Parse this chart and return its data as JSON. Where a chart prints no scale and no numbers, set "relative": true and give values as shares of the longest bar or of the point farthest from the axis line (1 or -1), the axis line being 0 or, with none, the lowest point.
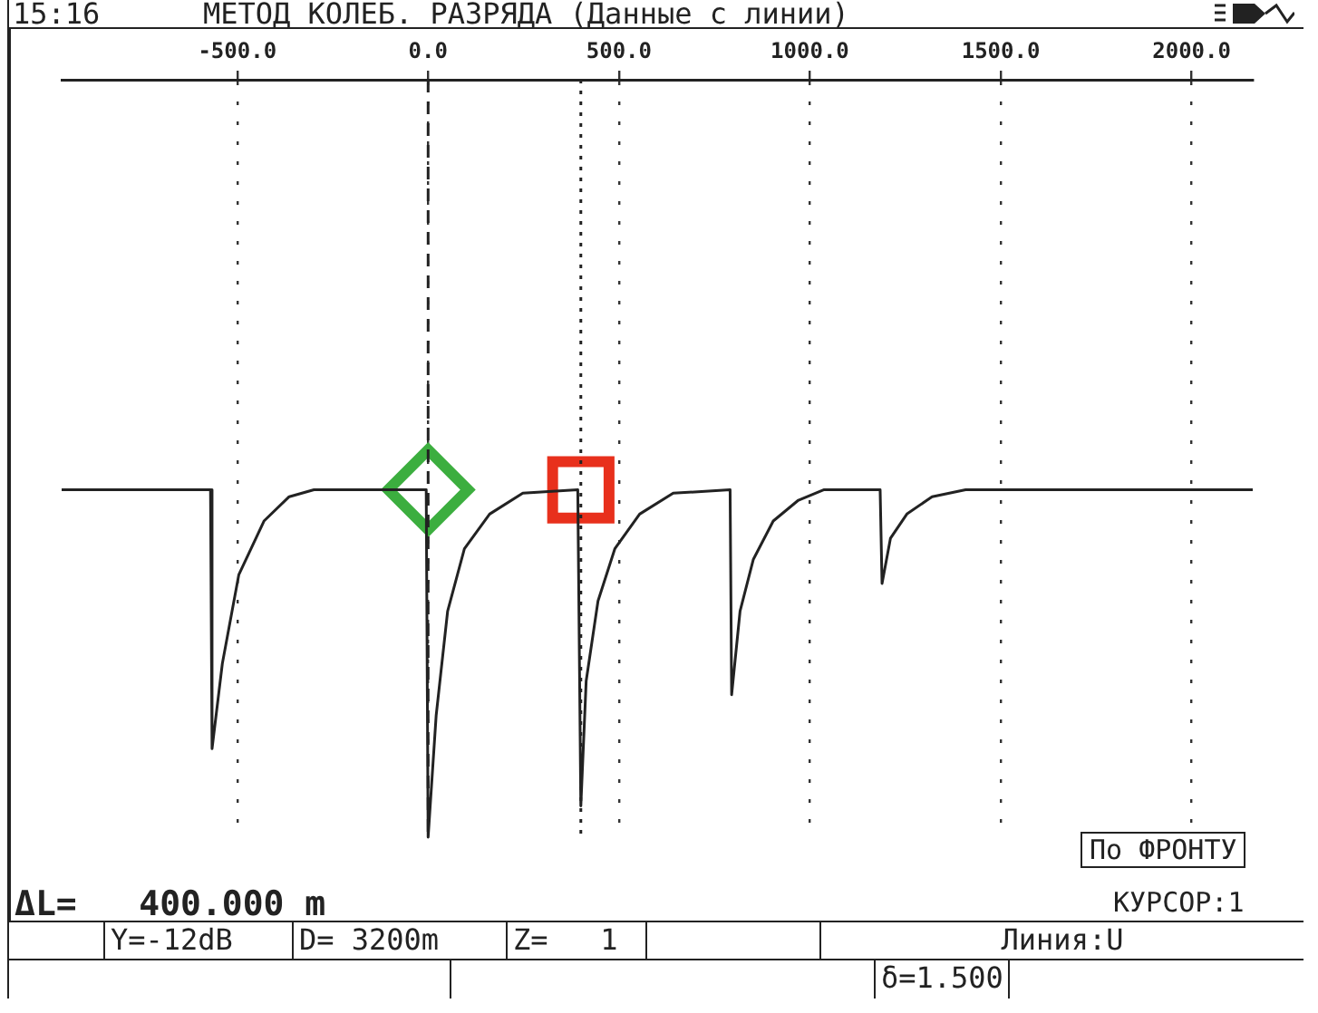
{
  "chart_data": {
    "type": "line",
    "title": "МЕТОД КОЛЕБ. РАЗРЯДА (Данные с линии)",
    "annotations": [
      "15:16",
      "ΔL=   400.000 m",
      "По ФРОНТУ",
      "КУРСОР:1",
      "Y=-12dB",
      "D= 3200m",
      "Z=   1",
      "Линия:U",
      "δ=1.500"
    ],
    "relative": true,
    "xlim": [
      -960,
      2160
    ],
    "xticks": [
      {
        "value": -500,
        "label": "-500.0"
      },
      {
        "value": 0,
        "label": "0.0"
      },
      {
        "value": 500,
        "label": "500.0"
      },
      {
        "value": 1000,
        "label": "1000.0"
      },
      {
        "value": 1500,
        "label": "1500.0"
      },
      {
        "value": 2000,
        "label": "2000.0"
      }
    ],
    "grid": "x",
    "legend": false,
    "marker": "none",
    "line_style": "solid",
    "series": [
      {
        "color": "#222222",
        "x": [
          -960,
          -570,
          -566,
          -539,
          -496,
          -430,
          -364,
          -299,
          -5,
          0,
          21,
          51,
          95,
          161,
          248,
          392,
          400,
          414,
          445,
          489,
          554,
          642,
          791,
          795,
          817,
          852,
          904,
          970,
          1036,
          1184,
          1189,
          1211,
          1254,
          1320,
          1408,
          2160
        ],
        "values": [
          1,
          1,
          0.255,
          0.5,
          0.755,
          0.91,
          0.98,
          1,
          1,
          0,
          0.35,
          0.65,
          0.83,
          0.93,
          0.99,
          1,
          0.09,
          0.45,
          0.68,
          0.83,
          0.93,
          0.99,
          1,
          0.41,
          0.65,
          0.8,
          0.91,
          0.97,
          1,
          1,
          0.73,
          0.86,
          0.93,
          0.98,
          1,
          1
        ]
      },
      {
        "type": "scatter",
        "color": "#3cae3f",
        "marker": "diamond",
        "x": [
          0
        ],
        "values": [
          1
        ]
      },
      {
        "type": "scatter",
        "color": "#e8301c",
        "marker": "square",
        "x": [
          400
        ],
        "values": [
          1
        ]
      }
    ],
    "ref_lines": [
      {
        "axis": "x",
        "value": 0,
        "line_style": "dashed",
        "color": "#222222"
      },
      {
        "axis": "x",
        "value": 400,
        "line_style": "dotted",
        "color": "#222222"
      }
    ]
  }
}
